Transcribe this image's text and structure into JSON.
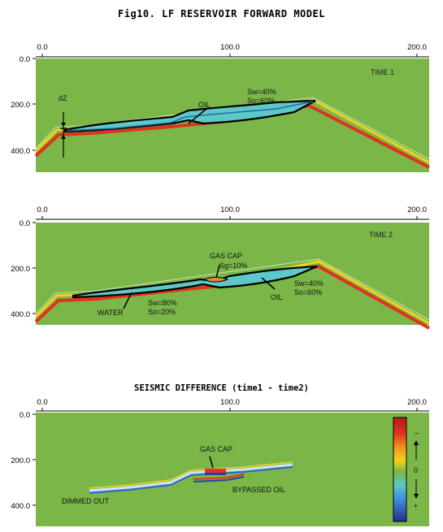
{
  "title": "Fig10. LF RESERVOIR FORWARD MODEL",
  "difference_title": "SEISMIC DIFFERENCE (time1 - time2)",
  "colors": {
    "background_green": "#7ab648",
    "reflector_red": "#e0321e",
    "reflector_yellow": "#f2d21e",
    "reservoir_cyan": "#5ec8c8",
    "outline": "#000000"
  },
  "panels": [
    {
      "id": "time1",
      "x_ticks": [
        "0.0",
        "100.0",
        "200.0"
      ],
      "y_ticks": [
        "0.0",
        "200.0",
        "400.0"
      ],
      "time_label": "TIME 1",
      "labels": {
        "dz": "dZ",
        "oil": "OIL",
        "sw": "Sw=40%",
        "so": "So=60%"
      }
    },
    {
      "id": "time2",
      "x_ticks": [
        "0.0",
        "100.0",
        "200.0"
      ],
      "y_ticks": [
        "0.0",
        "200.0",
        "400.0"
      ],
      "time_label": "TIME 2",
      "labels": {
        "gas_cap": "GAS CAP",
        "gas_sg": "Sg=10%",
        "sw_oil": "Sw=40%",
        "so_oil": "So=60%",
        "oil": "OIL",
        "sw_water": "Sw=80%",
        "so_water": "So=20%",
        "water": "WATER"
      }
    },
    {
      "id": "difference",
      "x_ticks": [
        "0.0",
        "100.0",
        "200.0"
      ],
      "y_ticks": [
        "0.0",
        "200.0",
        "400.0"
      ],
      "labels": {
        "gas_cap": "GAS CAP",
        "bypassed_oil": "BYPASSED OIL",
        "dimmed_out": "DIMMED OUT"
      },
      "colorbar": {
        "minus": "–",
        "zero": "0",
        "plus": "+"
      }
    }
  ]
}
